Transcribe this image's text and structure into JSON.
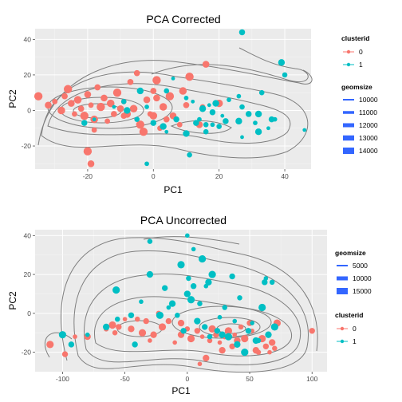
{
  "colors": {
    "cluster0": "#F8766D",
    "cluster1": "#00BFC4",
    "contour": "#7f7f7f",
    "size_key": "#3366FF",
    "panel_bg": "#EBEBEB",
    "grid_major": "#ffffff",
    "grid_minor": "#F4F4F4"
  },
  "chart_data": [
    {
      "type": "scatter",
      "title": "PCA Corrected",
      "xlabel": "PC1",
      "ylabel": "PC2",
      "xlim": [
        -36,
        48
      ],
      "ylim": [
        -33,
        46
      ],
      "xticks": [
        -20,
        0,
        20,
        40
      ],
      "yticks": [
        -20,
        0,
        20,
        40
      ],
      "grid": true,
      "overlay": "2d density contours",
      "legends": [
        {
          "title": "clusterid",
          "entries": [
            "0",
            "1"
          ]
        },
        {
          "title": "geomsize",
          "entries": [
            "10000",
            "11000",
            "12000",
            "13000",
            "14000"
          ]
        }
      ],
      "series": [
        {
          "name": "0",
          "points": [
            [
              -35,
              8
            ],
            [
              -32,
              3
            ],
            [
              -30,
              5
            ],
            [
              -28,
              0
            ],
            [
              -27,
              8
            ],
            [
              -26,
              12
            ],
            [
              -25,
              4
            ],
            [
              -24,
              -2
            ],
            [
              -23,
              6
            ],
            [
              -22,
              1
            ],
            [
              -21,
              -3
            ],
            [
              -20,
              9
            ],
            [
              -19,
              3
            ],
            [
              -18,
              -5
            ],
            [
              -17,
              13
            ],
            [
              -16,
              2
            ],
            [
              -15,
              7
            ],
            [
              -14,
              -6
            ],
            [
              -13,
              4
            ],
            [
              -12,
              -2
            ],
            [
              -11,
              10
            ],
            [
              -10,
              1
            ],
            [
              -9,
              5
            ],
            [
              -8,
              -2
            ],
            [
              -7,
              16
            ],
            [
              -20,
              -23
            ],
            [
              -19,
              -30
            ],
            [
              -18,
              -11
            ],
            [
              -6,
              1
            ],
            [
              -5,
              21
            ],
            [
              -4,
              -8
            ],
            [
              -2,
              6
            ],
            [
              -1,
              -2
            ],
            [
              0,
              -3
            ],
            [
              0,
              11
            ],
            [
              1,
              17
            ],
            [
              1,
              7
            ],
            [
              2,
              -10
            ],
            [
              3,
              2
            ],
            [
              4,
              -5
            ],
            [
              5,
              8
            ],
            [
              6,
              -3
            ],
            [
              8,
              -8
            ],
            [
              9,
              11
            ],
            [
              10,
              3
            ],
            [
              11,
              19
            ],
            [
              14,
              -8
            ],
            [
              15,
              2
            ],
            [
              20,
              4
            ],
            [
              -9,
              -3
            ],
            [
              -3,
              -12
            ],
            [
              16,
              26
            ]
          ]
        },
        {
          "name": "1",
          "points": [
            [
              -8,
              0
            ],
            [
              -5,
              -5
            ],
            [
              -12,
              2
            ],
            [
              0,
              -7
            ],
            [
              -2,
              2
            ],
            [
              3,
              -9
            ],
            [
              4,
              11
            ],
            [
              6,
              18
            ],
            [
              7,
              -5
            ],
            [
              10,
              7
            ],
            [
              10,
              -13
            ],
            [
              11,
              -25
            ],
            [
              12,
              5
            ],
            [
              13,
              -7
            ],
            [
              14,
              -5
            ],
            [
              15,
              1
            ],
            [
              16,
              -8
            ],
            [
              17,
              3
            ],
            [
              18,
              -1
            ],
            [
              18,
              -8
            ],
            [
              19,
              4
            ],
            [
              20,
              -9
            ],
            [
              21,
              -3
            ],
            [
              22,
              -6
            ],
            [
              23,
              6
            ],
            [
              26,
              -6
            ],
            [
              27,
              2
            ],
            [
              27,
              -15
            ],
            [
              29,
              -2
            ],
            [
              31,
              -7
            ],
            [
              32,
              -12
            ],
            [
              33,
              10
            ],
            [
              35,
              -10
            ],
            [
              36,
              -5
            ],
            [
              37,
              -5
            ],
            [
              39,
              27
            ],
            [
              40,
              20
            ],
            [
              46,
              -11
            ],
            [
              27,
              44
            ],
            [
              -2,
              -30
            ],
            [
              -4,
              11
            ],
            [
              -9,
              5
            ],
            [
              -18,
              -5
            ],
            [
              -21,
              -7
            ],
            [
              26,
              8
            ],
            [
              32,
              -2
            ],
            [
              16,
              -12
            ],
            [
              4,
              -12
            ]
          ]
        }
      ]
    },
    {
      "type": "scatter",
      "title": "PCA Uncorrected",
      "xlabel": "PC1",
      "ylabel": "PC2",
      "xlim": [
        -122,
        112
      ],
      "ylim": [
        -30,
        43
      ],
      "xticks": [
        -100,
        -50,
        0,
        50,
        100
      ],
      "yticks": [
        -20,
        0,
        20,
        40
      ],
      "grid": true,
      "overlay": "2d density contours",
      "legends": [
        {
          "title": "geomsize",
          "entries": [
            "5000",
            "10000",
            "15000"
          ]
        },
        {
          "title": "clusterid",
          "entries": [
            "0",
            "1"
          ]
        }
      ],
      "series": [
        {
          "name": "0",
          "points": [
            [
              -110,
              -16
            ],
            [
              -98,
              -21
            ],
            [
              -90,
              -12
            ],
            [
              -80,
              -12
            ],
            [
              -65,
              -8
            ],
            [
              -60,
              -6
            ],
            [
              -55,
              -7
            ],
            [
              -50,
              -3
            ],
            [
              -45,
              -8
            ],
            [
              -40,
              -3
            ],
            [
              -36,
              -10
            ],
            [
              -33,
              -4
            ],
            [
              -30,
              -14
            ],
            [
              -27,
              -11
            ],
            [
              -23,
              0
            ],
            [
              -20,
              -7
            ],
            [
              -15,
              -4
            ],
            [
              -10,
              -15
            ],
            [
              -5,
              -11
            ],
            [
              0,
              -8
            ],
            [
              3,
              -13
            ],
            [
              8,
              -9
            ],
            [
              12,
              -12
            ],
            [
              15,
              -23
            ],
            [
              18,
              -14
            ],
            [
              20,
              -8
            ],
            [
              23,
              -11
            ],
            [
              26,
              -15
            ],
            [
              28,
              -19
            ],
            [
              30,
              -12
            ],
            [
              33,
              -9
            ],
            [
              36,
              -17
            ],
            [
              38,
              -11
            ],
            [
              40,
              -14
            ],
            [
              43,
              -7
            ],
            [
              46,
              -13
            ],
            [
              50,
              -5
            ],
            [
              52,
              -9
            ],
            [
              55,
              -19
            ],
            [
              57,
              -20
            ],
            [
              60,
              -13
            ],
            [
              63,
              -17
            ],
            [
              66,
              -20
            ],
            [
              68,
              -15
            ],
            [
              70,
              -18
            ],
            [
              72,
              -5
            ],
            [
              100,
              -9
            ],
            [
              10,
              -26
            ],
            [
              -5,
              -5
            ],
            [
              -58,
              -10
            ]
          ]
        },
        {
          "name": "1",
          "points": [
            [
              -100,
              -11
            ],
            [
              -93,
              -16
            ],
            [
              -80,
              -11
            ],
            [
              -65,
              -7
            ],
            [
              -56,
              -3
            ],
            [
              -57,
              12
            ],
            [
              -45,
              -1
            ],
            [
              -37,
              6
            ],
            [
              -30,
              20
            ],
            [
              -30,
              37
            ],
            [
              -22,
              -1
            ],
            [
              -18,
              13
            ],
            [
              -15,
              3
            ],
            [
              -12,
              5
            ],
            [
              -8,
              -1
            ],
            [
              -5,
              25
            ],
            [
              -3,
              -9
            ],
            [
              0,
              40
            ],
            [
              0,
              10
            ],
            [
              1,
              18
            ],
            [
              3,
              7
            ],
            [
              5,
              14
            ],
            [
              5,
              33
            ],
            [
              8,
              -4
            ],
            [
              10,
              5
            ],
            [
              12,
              28
            ],
            [
              14,
              -7
            ],
            [
              15,
              14
            ],
            [
              17,
              16
            ],
            [
              18,
              -12
            ],
            [
              20,
              20
            ],
            [
              24,
              -9
            ],
            [
              26,
              -2
            ],
            [
              28,
              -11
            ],
            [
              30,
              3
            ],
            [
              33,
              -12
            ],
            [
              36,
              19
            ],
            [
              38,
              -4
            ],
            [
              40,
              -16
            ],
            [
              42,
              8
            ],
            [
              46,
              -20
            ],
            [
              49,
              -9
            ],
            [
              52,
              -5
            ],
            [
              55,
              -14
            ],
            [
              57,
              -14
            ],
            [
              60,
              3
            ],
            [
              62,
              16
            ],
            [
              63,
              18
            ],
            [
              65,
              -11
            ],
            [
              68,
              16
            ],
            [
              70,
              -7
            ],
            [
              -42,
              -16
            ]
          ]
        }
      ]
    }
  ]
}
